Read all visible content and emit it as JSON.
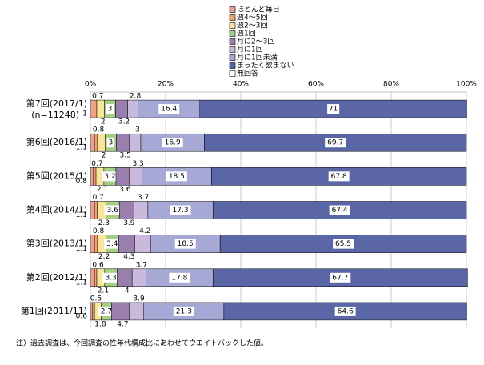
{
  "chart_data": {
    "type": "stacked-bar-horizontal",
    "categories": [
      "第7回(2017/1)",
      "第6回(2016/1)",
      "第5回(2015/1)",
      "第4回(2014/1)",
      "第3回(2013/1)",
      "第2回(2012/1)",
      "第1回(2011/11)"
    ],
    "sample_note": "(n=11248)",
    "series": [
      {
        "name": "ほとんど毎日",
        "color": "#e8a49c",
        "values": [
          1.0,
          1.1,
          0.8,
          1.1,
          1.1,
          1.1,
          0.6
        ]
      },
      {
        "name": "週4～5回",
        "color": "#f2a46e",
        "values": [
          0.7,
          0.8,
          0.7,
          0.7,
          0.8,
          0.6,
          0.5
        ]
      },
      {
        "name": "週2～3回",
        "color": "#fbe59a",
        "values": [
          2.0,
          2.0,
          2.1,
          2.3,
          2.2,
          2.1,
          1.8
        ]
      },
      {
        "name": "週1回",
        "color": "#a3cf86",
        "values": [
          3.0,
          3.0,
          3.2,
          3.6,
          3.4,
          3.3,
          2.7
        ]
      },
      {
        "name": "月に2～3回",
        "color": "#9a7fae",
        "values": [
          3.2,
          3.5,
          3.6,
          3.9,
          4.3,
          4.0,
          4.7
        ]
      },
      {
        "name": "月に1回",
        "color": "#c9b9dc",
        "values": [
          2.8,
          3.0,
          3.3,
          3.7,
          4.2,
          3.7,
          3.9
        ]
      },
      {
        "name": "月に1回未満",
        "color": "#a6a9d6",
        "values": [
          16.4,
          16.9,
          18.5,
          17.3,
          18.5,
          17.8,
          21.3
        ]
      },
      {
        "name": "まったく飲まない",
        "color": "#5a66a6",
        "values": [
          71.0,
          69.7,
          67.8,
          67.4,
          65.5,
          67.7,
          64.6
        ]
      },
      {
        "name": "無回答",
        "color": "#ffffff",
        "values": [
          null,
          null,
          null,
          null,
          null,
          null,
          null
        ]
      }
    ],
    "xlim": [
      0,
      100
    ],
    "xticks": [
      {
        "value": 0,
        "label": "0%"
      },
      {
        "value": 20,
        "label": "20%"
      },
      {
        "value": 40,
        "label": "40%"
      },
      {
        "value": 60,
        "label": "60%"
      },
      {
        "value": 80,
        "label": "80%"
      },
      {
        "value": 100,
        "label": "100%"
      }
    ],
    "grid": true,
    "footnote": "注）過去調査は、今回調査の性年代構成比にあわせてウエイトバックした値。"
  }
}
